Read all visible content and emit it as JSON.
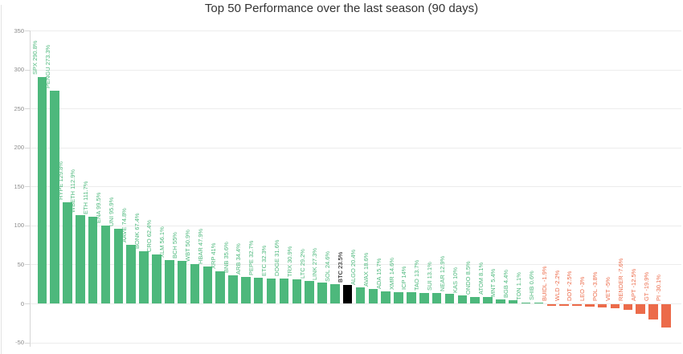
{
  "title": "Top 50 Performance over the last season (90 days)",
  "chart_data": {
    "type": "bar",
    "title": "Top 50 Performance over the last season (90 days)",
    "categories": [
      "SPX",
      "PENGU",
      "HYPE",
      "WBETH",
      "ETH",
      "ENA",
      "UNI",
      "AAVE",
      "BONK",
      "CRO",
      "XLM",
      "BCH",
      "WBT",
      "HBAR",
      "XRP",
      "BNB",
      "ARB",
      "PEPE",
      "ETC",
      "DOGE",
      "TRX",
      "LTC",
      "LINK",
      "SOL",
      "BTC",
      "ALGO",
      "AVAX",
      "ADA",
      "XMR",
      "ICP",
      "TAO",
      "SUI",
      "NEAR",
      "KAS",
      "ONDO",
      "ATOM",
      "MNT",
      "BGB",
      "TON",
      "SHIB",
      "BUIDL",
      "WLD",
      "DOT",
      "LEO",
      "POL",
      "VET",
      "RENDER",
      "APT",
      "GT",
      "PI"
    ],
    "values": [
      290.8,
      273.3,
      129.8,
      112.9,
      111.7,
      99.5,
      95.9,
      74.8,
      67.4,
      62.4,
      56.1,
      55,
      50.9,
      47.9,
      41,
      35.6,
      34.4,
      32.7,
      32.3,
      31.6,
      30.9,
      29.2,
      27.3,
      24.6,
      23.5,
      20.4,
      18.6,
      15.7,
      14.6,
      14,
      13.7,
      13.1,
      12.9,
      10,
      8.5,
      8.1,
      5.4,
      4.4,
      1.1,
      0.6,
      -1.9,
      -2.2,
      -2.5,
      -3,
      -3.8,
      -5,
      -7.6,
      -12.5,
      -19.9,
      -30.1
    ],
    "bar_labels": [
      "SPX 290.8%",
      "PENGU 273.3%",
      "HYPE 129.8%",
      "WBETH 112.9%",
      "ETH 111.7%",
      "ENA 99.5%",
      "UNI 95.9%",
      "AAVE 74.8%",
      "BONK 67.4%",
      "CRO 62.4%",
      "XLM 56.1%",
      "BCH 55%",
      "WBT 50.9%",
      "HBAR 47.9%",
      "XRP 41%",
      "BNB 35.6%",
      "ARB 34.4%",
      "PEPE 32.7%",
      "ETC 32.3%",
      "DOGE 31.6%",
      "TRX 30.9%",
      "LTC 29.2%",
      "LINK 27.3%",
      "SOL 24.6%",
      "BTC 23.5%",
      "ALGO 20.4%",
      "AVAX 18.6%",
      "ADA 15.7%",
      "XMR 14.6%",
      "ICP 14%",
      "TAO 13.7%",
      "SUI 13.1%",
      "NEAR 12.9%",
      "KAS 10%",
      "ONDO 8.5%",
      "ATOM 8.1%",
      "MNT 5.4%",
      "BGB 4.4%",
      "TON 1.1%",
      "SHIB 0.6%",
      "BUIDL -1.9%",
      "WLD -2.2%",
      "DOT -2.5%",
      "LEO -3%",
      "POL -3.8%",
      "VET -5%",
      "RENDER -7.6%",
      "APT -12.5%",
      "GT -19.9%",
      "PI -30.1%"
    ],
    "highlight_category": "BTC",
    "ylim": [
      -50,
      350
    ],
    "yticks": [
      350,
      300,
      250,
      200,
      150,
      100,
      50,
      0,
      -50
    ],
    "ytick_labels": [
      "350",
      "300",
      "250",
      "200",
      "150",
      "100",
      "50",
      "0",
      "-50"
    ],
    "grid": true,
    "legend_position": "none",
    "colors": {
      "positive": "#4db87c",
      "negative": "#ec6b4a",
      "highlight": "#000000",
      "axis_label": "#8c8c8c",
      "grid_line": "#ececec",
      "title": "#333333"
    }
  }
}
